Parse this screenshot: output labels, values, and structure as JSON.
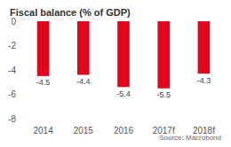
{
  "chart_data": {
    "type": "bar",
    "title": "Fiscal balance (% of GDP)",
    "source": "Source: Macrobond",
    "categories": [
      "2014",
      "2015",
      "2016",
      "2017f",
      "2018f"
    ],
    "values": [
      -4.5,
      -4.4,
      -5.4,
      -5.5,
      -4.3
    ],
    "color": "#e3051b",
    "ylim": [
      -8,
      0
    ],
    "yticks": [
      -8,
      -6,
      -4,
      -2,
      0
    ],
    "grid": false,
    "data_labels": true
  }
}
